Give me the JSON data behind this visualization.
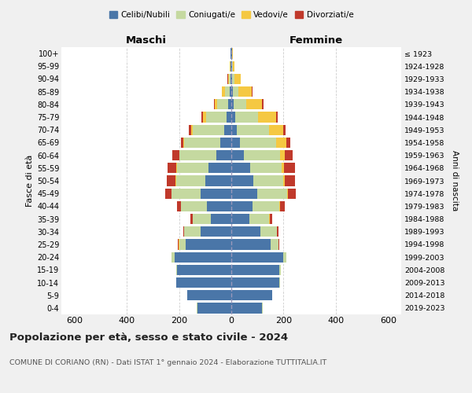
{
  "age_groups": [
    "0-4",
    "5-9",
    "10-14",
    "15-19",
    "20-24",
    "25-29",
    "30-34",
    "35-39",
    "40-44",
    "45-49",
    "50-54",
    "55-59",
    "60-64",
    "65-69",
    "70-74",
    "75-79",
    "80-84",
    "85-89",
    "90-94",
    "95-99",
    "100+"
  ],
  "birth_years": [
    "2019-2023",
    "2014-2018",
    "2009-2013",
    "2004-2008",
    "1999-2003",
    "1994-1998",
    "1989-1993",
    "1984-1988",
    "1979-1983",
    "1974-1978",
    "1969-1973",
    "1964-1968",
    "1959-1963",
    "1954-1958",
    "1949-1953",
    "1944-1948",
    "1939-1943",
    "1934-1938",
    "1929-1933",
    "1924-1928",
    "≤ 1923"
  ],
  "maschi": {
    "celibi": [
      130,
      168,
      210,
      208,
      218,
      175,
      118,
      78,
      92,
      118,
      100,
      88,
      58,
      42,
      28,
      18,
      12,
      7,
      3,
      2,
      2
    ],
    "coniugati": [
      2,
      2,
      2,
      3,
      10,
      25,
      62,
      70,
      100,
      110,
      112,
      120,
      140,
      138,
      118,
      78,
      42,
      18,
      5,
      2,
      1
    ],
    "vedovi": [
      0,
      0,
      0,
      0,
      0,
      1,
      0,
      0,
      1,
      1,
      2,
      2,
      2,
      4,
      8,
      12,
      10,
      10,
      5,
      2,
      1
    ],
    "divorziati": [
      0,
      0,
      0,
      0,
      2,
      3,
      5,
      8,
      15,
      25,
      32,
      35,
      25,
      10,
      8,
      5,
      2,
      2,
      1,
      0,
      0
    ]
  },
  "femmine": {
    "nubili": [
      118,
      155,
      185,
      185,
      198,
      150,
      110,
      70,
      80,
      100,
      85,
      73,
      48,
      32,
      22,
      15,
      10,
      5,
      3,
      2,
      2
    ],
    "coniugate": [
      2,
      2,
      2,
      4,
      12,
      30,
      65,
      75,
      105,
      115,
      115,
      120,
      140,
      140,
      122,
      88,
      48,
      22,
      8,
      3,
      1
    ],
    "vedove": [
      0,
      0,
      0,
      0,
      0,
      1,
      1,
      1,
      2,
      3,
      5,
      10,
      18,
      38,
      55,
      68,
      60,
      50,
      25,
      8,
      3
    ],
    "divorziate": [
      0,
      0,
      0,
      0,
      1,
      3,
      5,
      10,
      18,
      30,
      38,
      40,
      30,
      15,
      10,
      8,
      5,
      3,
      1,
      0,
      0
    ]
  },
  "colors": {
    "celibi": "#4a76a8",
    "coniugati": "#c5d9a0",
    "vedovi": "#f5c842",
    "divorziati": "#c0392b"
  },
  "xlim": 650,
  "title": "Popolazione per età, sesso e stato civile - 2024",
  "subtitle": "COMUNE DI CORIANO (RN) - Dati ISTAT 1° gennaio 2024 - Elaborazione TUTTITALIA.IT",
  "ylabel_left": "Fasce di età",
  "ylabel_right": "Anni di nascita",
  "xlabel_maschi": "Maschi",
  "xlabel_femmine": "Femmine",
  "bg_color": "#f0f0f0",
  "plot_bg_color": "#ffffff"
}
